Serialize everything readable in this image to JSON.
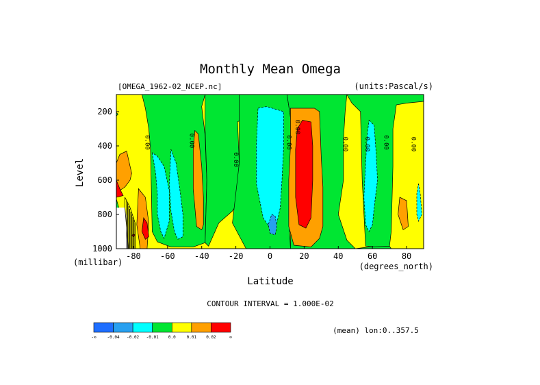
{
  "chart_data": {
    "type": "heatmap",
    "title": "Monthly Mean Omega",
    "dataset_label": "[OMEGA_1962-02_NCEP.nc]",
    "units_label": "(units:Pascal/s)",
    "xlabel": "Latitude",
    "xunits": "(degrees_north)",
    "ylabel": "Level",
    "yunits": "(millibar)",
    "xlim": [
      -90,
      90
    ],
    "ylim": [
      1000,
      100
    ],
    "y_reversed": true,
    "x_ticks": [
      {
        "value": -80,
        "label": "-80"
      },
      {
        "value": -60,
        "label": "-60"
      },
      {
        "value": -40,
        "label": "-40"
      },
      {
        "value": -20,
        "label": "-20"
      },
      {
        "value": 0,
        "label": "0"
      },
      {
        "value": 20,
        "label": "20"
      },
      {
        "value": 40,
        "label": "40"
      },
      {
        "value": 60,
        "label": "60"
      },
      {
        "value": 80,
        "label": "80"
      }
    ],
    "y_ticks": [
      {
        "value": 200,
        "label": "200"
      },
      {
        "value": 400,
        "label": "400"
      },
      {
        "value": 600,
        "label": "600"
      },
      {
        "value": 800,
        "label": "800"
      },
      {
        "value": 1000,
        "label": "1000"
      }
    ],
    "contour_interval_text": "CONTOUR INTERVAL = 1.000E-02",
    "mean_text": "(mean) lon:0..357.5",
    "contour_label": "0.00",
    "contour_label_positions": [
      {
        "lat": -73,
        "lev": 380
      },
      {
        "lat": -47,
        "lev": 370
      },
      {
        "lat": -21,
        "lev": 480
      },
      {
        "lat": 10,
        "lev": 380
      },
      {
        "lat": 15,
        "lev": 290
      },
      {
        "lat": 43,
        "lev": 390
      },
      {
        "lat": 56,
        "lev": 390
      },
      {
        "lat": 67,
        "lev": 380
      },
      {
        "lat": 83,
        "lev": 390
      }
    ],
    "colorbar": {
      "colors": [
        "#1e6eff",
        "#28a0f0",
        "#00ffff",
        "#00e632",
        "#ffff00",
        "#ffa000",
        "#ff0000"
      ],
      "labels": [
        "-∞",
        "-0.04",
        "-0.02",
        "-0.01",
        "0.0",
        "0.01",
        "0.02",
        "∞"
      ]
    },
    "background_color": "#ffff00",
    "regions": [
      {
        "color": "#00e632",
        "dashed": false,
        "points": [
          [
            -90,
            100
          ],
          [
            -75,
            100
          ],
          [
            -73,
            180
          ],
          [
            -71,
            300
          ],
          [
            -70,
            420
          ],
          [
            -69,
            900
          ],
          [
            -66,
            960
          ],
          [
            -58,
            990
          ],
          [
            -45,
            990
          ],
          [
            -38,
            965
          ],
          [
            -37,
            600
          ],
          [
            -38,
            340
          ],
          [
            -40,
            170
          ],
          [
            -38,
            100
          ],
          [
            -90,
            100
          ]
        ]
      },
      {
        "color": "#00e632",
        "dashed": false,
        "points": [
          [
            -90,
            205
          ],
          [
            -89,
            215
          ],
          [
            -90,
            225
          ]
        ]
      },
      {
        "color": "#00e632",
        "dashed": false,
        "points": [
          [
            -90,
            710
          ],
          [
            -88,
            780
          ],
          [
            -87,
            840
          ],
          [
            -90,
            860
          ]
        ]
      },
      {
        "color": "#00e632",
        "dashed": false,
        "points": [
          [
            -38,
            100
          ],
          [
            -18,
            100
          ],
          [
            -14,
            230
          ],
          [
            -19,
            260
          ],
          [
            -18,
            500
          ],
          [
            -20,
            750
          ],
          [
            -22,
            780
          ],
          [
            -30,
            850
          ],
          [
            -34,
            940
          ],
          [
            -36,
            985
          ],
          [
            -38,
            965
          ],
          [
            -37,
            600
          ],
          [
            -38,
            300
          ],
          [
            -38,
            100
          ]
        ]
      },
      {
        "color": "#00e632",
        "dashed": false,
        "points": [
          [
            -18,
            100
          ],
          [
            10,
            100
          ],
          [
            13,
            300
          ],
          [
            12,
            600
          ],
          [
            11,
            800
          ],
          [
            12,
            1000
          ],
          [
            -14,
            1000
          ],
          [
            -22,
            850
          ],
          [
            -18,
            500
          ],
          [
            -18,
            100
          ]
        ]
      },
      {
        "color": "#00e632",
        "dashed": false,
        "points": [
          [
            10,
            100
          ],
          [
            45,
            100
          ],
          [
            44,
            200
          ],
          [
            43,
            360
          ],
          [
            43,
            600
          ],
          [
            40,
            800
          ],
          [
            45,
            950
          ],
          [
            50,
            1000
          ],
          [
            12,
            1000
          ],
          [
            13,
            300
          ],
          [
            10,
            100
          ]
        ]
      },
      {
        "color": "#00e632",
        "dashed": false,
        "points": [
          [
            45,
            100
          ],
          [
            90,
            100
          ],
          [
            90,
            140
          ],
          [
            80,
            150
          ],
          [
            74,
            160
          ],
          [
            72,
            300
          ],
          [
            72,
            520
          ],
          [
            71,
            900
          ],
          [
            70,
            985
          ],
          [
            62,
            990
          ],
          [
            56,
            985
          ],
          [
            54,
            600
          ],
          [
            53,
            200
          ],
          [
            48,
            150
          ],
          [
            45,
            100
          ]
        ]
      },
      {
        "color": "#00e632",
        "dashed": false,
        "points": [
          [
            50,
            1000
          ],
          [
            58,
            990
          ],
          [
            70,
            985
          ],
          [
            71,
            1000
          ]
        ]
      },
      {
        "color": "#00ffff",
        "dashed": true,
        "points": [
          [
            -69,
            440
          ],
          [
            -67,
            560
          ],
          [
            -66,
            680
          ],
          [
            -66,
            800
          ],
          [
            -64,
            900
          ],
          [
            -62,
            940
          ],
          [
            -59,
            840
          ],
          [
            -59,
            660
          ],
          [
            -62,
            520
          ],
          [
            -66,
            460
          ],
          [
            -69,
            440
          ]
        ]
      },
      {
        "color": "#00ffff",
        "dashed": true,
        "points": [
          [
            -58,
            420
          ],
          [
            -55,
            500
          ],
          [
            -53,
            640
          ],
          [
            -51,
            800
          ],
          [
            -51,
            930
          ],
          [
            -54,
            945
          ],
          [
            -56,
            900
          ],
          [
            -58,
            780
          ],
          [
            -59,
            620
          ],
          [
            -58,
            420
          ]
        ]
      },
      {
        "color": "#00ffff",
        "dashed": true,
        "points": [
          [
            -7,
            180
          ],
          [
            -2,
            170
          ],
          [
            8,
            200
          ],
          [
            8,
            400
          ],
          [
            7,
            600
          ],
          [
            6,
            760
          ],
          [
            4,
            850
          ],
          [
            0,
            880
          ],
          [
            -4,
            820
          ],
          [
            -8,
            620
          ],
          [
            -8,
            400
          ],
          [
            -7,
            180
          ]
        ]
      },
      {
        "color": "#00ffff",
        "dashed": true,
        "points": [
          [
            58,
            250
          ],
          [
            61,
            280
          ],
          [
            62,
            420
          ],
          [
            63,
            600
          ],
          [
            61,
            760
          ],
          [
            60,
            860
          ],
          [
            58,
            900
          ],
          [
            56,
            860
          ],
          [
            55,
            700
          ],
          [
            56,
            500
          ],
          [
            57,
            330
          ],
          [
            58,
            250
          ]
        ]
      },
      {
        "color": "#00ffff",
        "dashed": true,
        "points": [
          [
            87,
            620
          ],
          [
            88,
            680
          ],
          [
            89,
            800
          ],
          [
            87,
            840
          ],
          [
            86,
            800
          ],
          [
            86,
            680
          ],
          [
            87,
            620
          ]
        ]
      },
      {
        "color": "#28a0f0",
        "dashed": true,
        "points": [
          [
            1,
            800
          ],
          [
            3,
            810
          ],
          [
            4,
            870
          ],
          [
            3,
            920
          ],
          [
            0,
            910
          ],
          [
            -1,
            860
          ],
          [
            1,
            800
          ]
        ]
      },
      {
        "color": "#ffa000",
        "dashed": false,
        "points": [
          [
            -88,
            450
          ],
          [
            -84,
            430
          ],
          [
            -81,
            560
          ],
          [
            -82,
            600
          ],
          [
            -85,
            640
          ],
          [
            -88,
            660
          ],
          [
            -90,
            650
          ],
          [
            -90,
            500
          ],
          [
            -88,
            450
          ]
        ]
      },
      {
        "color": "#ffa000",
        "dashed": false,
        "points": [
          [
            -77,
            650
          ],
          [
            -73,
            700
          ],
          [
            -71,
            850
          ],
          [
            -72,
            1000
          ],
          [
            -76,
            1000
          ],
          [
            -78,
            860
          ],
          [
            -77,
            650
          ]
        ]
      },
      {
        "color": "#ffa000",
        "dashed": false,
        "points": [
          [
            -44,
            310
          ],
          [
            -42,
            330
          ],
          [
            -40,
            520
          ],
          [
            -39,
            700
          ],
          [
            -39,
            860
          ],
          [
            -40,
            890
          ],
          [
            -43,
            870
          ],
          [
            -45,
            650
          ],
          [
            -45,
            420
          ],
          [
            -44,
            310
          ]
        ]
      },
      {
        "color": "#ffa000",
        "dashed": false,
        "points": [
          [
            12,
            180
          ],
          [
            26,
            180
          ],
          [
            29,
            200
          ],
          [
            30,
            460
          ],
          [
            31,
            640
          ],
          [
            31,
            870
          ],
          [
            29,
            940
          ],
          [
            24,
            990
          ],
          [
            14,
            980
          ],
          [
            11,
            870
          ],
          [
            11,
            600
          ],
          [
            12,
            400
          ],
          [
            12,
            180
          ]
        ]
      },
      {
        "color": "#ffa000",
        "dashed": false,
        "points": [
          [
            76,
            700
          ],
          [
            80,
            720
          ],
          [
            81,
            870
          ],
          [
            78,
            890
          ],
          [
            75,
            800
          ],
          [
            76,
            700
          ]
        ]
      },
      {
        "color": "#ff0000",
        "dashed": false,
        "points": [
          [
            -90,
            600
          ],
          [
            -88,
            650
          ],
          [
            -86,
            690
          ],
          [
            -90,
            700
          ]
        ]
      },
      {
        "color": "#ff0000",
        "dashed": false,
        "points": [
          [
            -74,
            820
          ],
          [
            -72,
            850
          ],
          [
            -71,
            930
          ],
          [
            -73,
            945
          ],
          [
            -75,
            900
          ],
          [
            -74,
            820
          ]
        ]
      },
      {
        "color": "#ff0000",
        "dashed": false,
        "points": [
          [
            -80,
            915
          ],
          [
            -79,
            920
          ],
          [
            -80,
            930
          ],
          [
            -81,
            922
          ],
          [
            -80,
            915
          ]
        ]
      },
      {
        "color": "#ff0000",
        "dashed": false,
        "points": [
          [
            19,
            250
          ],
          [
            24,
            260
          ],
          [
            25,
            400
          ],
          [
            25,
            600
          ],
          [
            24,
            820
          ],
          [
            21,
            880
          ],
          [
            17,
            860
          ],
          [
            15,
            700
          ],
          [
            15,
            420
          ],
          [
            16,
            300
          ],
          [
            19,
            250
          ]
        ]
      }
    ],
    "missing_region": [
      [
        -90,
        760
      ],
      [
        -85,
        760
      ],
      [
        -84,
        820
      ],
      [
        -83,
        1000
      ],
      [
        -90,
        1000
      ]
    ],
    "hatch_region": [
      [
        -85,
        700
      ],
      [
        -82,
        760
      ],
      [
        -79,
        850
      ],
      [
        -79,
        1000
      ],
      [
        -83,
        1000
      ],
      [
        -85,
        760
      ]
    ]
  }
}
